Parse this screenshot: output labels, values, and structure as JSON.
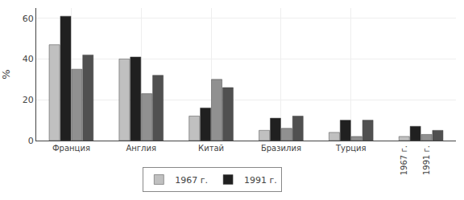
{
  "chart_data": {
    "type": "bar",
    "categories": [
      "Франция",
      "Англия",
      "Китай",
      "Бразилия",
      "Турция",
      null
    ],
    "series": [
      {
        "name": "1967 г.",
        "color": "#c0c0c0",
        "values": [
          47,
          40,
          12,
          5,
          4,
          2
        ]
      },
      {
        "name": "1991 г.",
        "color": "#202020",
        "values": [
          61,
          41,
          16,
          11,
          10,
          7
        ]
      },
      {
        "name": "1967 г.",
        "color": "#909090",
        "values": [
          35,
          23,
          30,
          6,
          2,
          3
        ]
      },
      {
        "name": "1991 г.",
        "color": "#505050",
        "values": [
          42,
          32,
          26,
          12,
          10,
          5
        ]
      }
    ],
    "ylabel": "%",
    "ylim": [
      0,
      65
    ],
    "yticks": [
      0,
      20,
      40,
      60
    ],
    "annotations": [
      "1967 г.",
      "1991 г."
    ],
    "grid": true,
    "legend": "bottom"
  }
}
